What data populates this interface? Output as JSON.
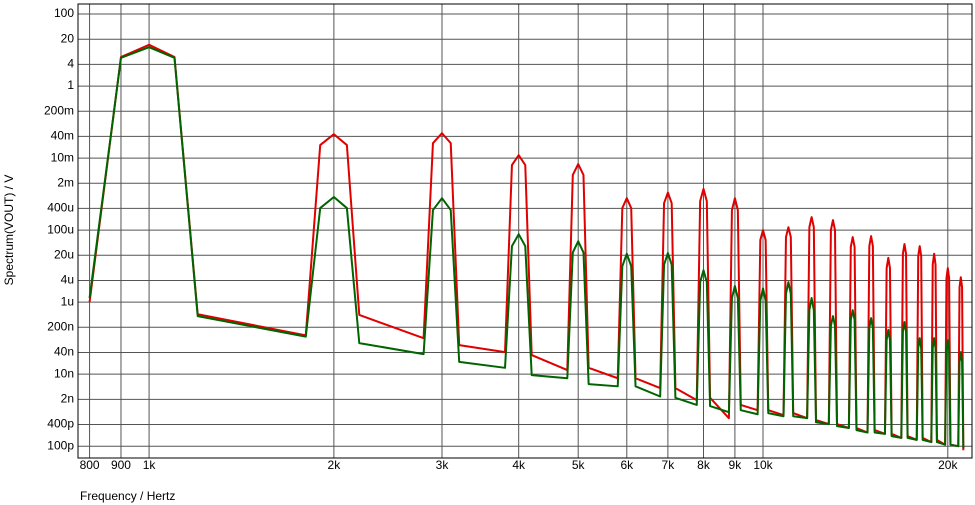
{
  "chart_data": {
    "type": "line",
    "xlabel": "Frequency / Hertz",
    "ylabel": "Spectrum(VOUT) / V",
    "xscale": "log",
    "yscale": "log",
    "grid": true,
    "xlim": [
      766,
      21900
    ],
    "ylim": [
      4.7e-11,
      190
    ],
    "xticks": [
      800,
      900,
      {
        "value": 1000,
        "label": "1k"
      },
      {
        "value": 2000,
        "label": "2k"
      },
      {
        "value": 3000,
        "label": "3k"
      },
      {
        "value": 4000,
        "label": "4k"
      },
      {
        "value": 5000,
        "label": "5k"
      },
      {
        "value": 6000,
        "label": "6k"
      },
      {
        "value": 7000,
        "label": "7k"
      },
      {
        "value": 8000,
        "label": "8k"
      },
      {
        "value": 9000,
        "label": "9k"
      },
      {
        "value": 10000,
        "label": "10k"
      },
      {
        "value": 20000,
        "label": "20k"
      }
    ],
    "yticks": [
      100,
      20,
      4,
      1,
      {
        "value": 0.2,
        "label": "200m"
      },
      {
        "value": 0.04,
        "label": "40m"
      },
      {
        "value": 0.01,
        "label": "10m"
      },
      {
        "value": 0.002,
        "label": "2m"
      },
      {
        "value": 0.0004,
        "label": "400u"
      },
      {
        "value": 0.0001,
        "label": "100u"
      },
      {
        "value": 2e-05,
        "label": "20u"
      },
      {
        "value": 4e-06,
        "label": "4u"
      },
      {
        "value": 1e-06,
        "label": "1u"
      },
      {
        "value": 2e-07,
        "label": "200n"
      },
      {
        "value": 4e-08,
        "label": "40n"
      },
      {
        "value": 1e-08,
        "label": "10n"
      },
      {
        "value": 2e-09,
        "label": "2n"
      },
      {
        "value": 4e-10,
        "label": "400p"
      },
      {
        "value": 1e-10,
        "label": "100p"
      }
    ],
    "x": [
      800,
      900,
      1000,
      1100,
      1200,
      1800,
      1900,
      2000,
      2100,
      2200,
      2800,
      2900,
      3000,
      3100,
      3200,
      3800,
      3900,
      4000,
      4100,
      4200,
      4800,
      4900,
      5000,
      5100,
      5200,
      5800,
      5900,
      6000,
      6100,
      6200,
      6800,
      6900,
      7000,
      7100,
      7200,
      7800,
      7900,
      8000,
      8100,
      8200,
      8800,
      8900,
      9000,
      9100,
      9200,
      9800,
      9900,
      10000,
      10100,
      10200,
      10800,
      10900,
      11000,
      11100,
      11200,
      11800,
      11900,
      12000,
      12100,
      12200,
      12800,
      12900,
      13000,
      13100,
      13200,
      13800,
      13900,
      14000,
      14100,
      14200,
      14800,
      14900,
      15000,
      15100,
      15200,
      15800,
      15900,
      16000,
      16100,
      16200,
      16800,
      16900,
      17000,
      17100,
      17200,
      17800,
      17900,
      18000,
      18100,
      18200,
      18800,
      18900,
      19000,
      19100,
      19200,
      19800,
      19900,
      20000,
      20100,
      20200,
      20800,
      20900,
      21000,
      21100,
      21200
    ],
    "series": [
      {
        "color": "#e00000",
        "values": [
          1e-06,
          6.4,
          14,
          6.4,
          4.6e-07,
          1.2e-07,
          0.023,
          0.046,
          0.023,
          4.4e-07,
          1e-07,
          0.026,
          0.049,
          0.026,
          6.4e-08,
          4.1e-08,
          0.0064,
          0.012,
          0.0064,
          3.4e-08,
          1.3e-08,
          0.0034,
          0.0068,
          0.0034,
          1.5e-08,
          7.7e-09,
          0.00041,
          0.00077,
          0.00041,
          7.7e-09,
          4.1e-09,
          0.00056,
          0.0011,
          0.00056,
          4.1e-09,
          1.9e-09,
          0.00064,
          0.0014,
          0.00064,
          2.2e-09,
          6e-10,
          0.00036,
          0.00077,
          0.00036,
          1.4e-09,
          1e-09,
          5.3e-05,
          0.0001,
          5.3e-05,
          1e-09,
          7.3e-10,
          6.4e-05,
          0.00012,
          6.4e-05,
          8.3e-10,
          6e-10,
          0.00012,
          0.00023,
          0.00012,
          5.3e-10,
          4.1e-10,
          0.0001,
          0.00019,
          0.0001,
          4.1e-10,
          3.2e-10,
          3.4e-05,
          6.4e-05,
          3.4e-05,
          3.2e-10,
          2.4e-10,
          3.6e-05,
          6.8e-05,
          3.6e-05,
          2.8e-10,
          2.2e-10,
          8.8e-06,
          1.7e-05,
          8.8e-06,
          2.2e-10,
          1.7e-10,
          2.2e-05,
          4.1e-05,
          2.2e-05,
          1.9e-10,
          1.5e-10,
          1.9e-05,
          3.6e-05,
          1.9e-05,
          1.7e-10,
          1.3e-10,
          1.1e-05,
          2.2e-05,
          1.1e-05,
          1.5e-10,
          1.1e-10,
          4.6e-06,
          8.8e-06,
          4.6e-06,
          1.1e-10,
          1e-10,
          2.6e-06,
          4.9e-06,
          2.6e-06,
          7.7e-11
        ]
      },
      {
        "color": "#006400",
        "values": [
          1.3e-06,
          6.1,
          12,
          6.1,
          4.1e-07,
          1.1e-07,
          0.00041,
          0.00083,
          0.00041,
          7.3e-08,
          3.6e-08,
          0.00036,
          0.00077,
          0.00036,
          2.2e-08,
          1.5e-08,
          3.6e-05,
          7.7e-05,
          3.6e-05,
          9.4e-09,
          7.7e-09,
          2.4e-05,
          4.9e-05,
          2.4e-05,
          5.3e-09,
          4.6e-09,
          1e-05,
          2.2e-05,
          1e-05,
          4.6e-09,
          2.4e-09,
          1.1e-05,
          2.3e-05,
          1.1e-05,
          2.2e-09,
          1.4e-09,
          3.6e-06,
          7.7e-06,
          3.6e-06,
          1.3e-09,
          8.8e-10,
          1.3e-06,
          2.8e-06,
          1.3e-06,
          1e-09,
          7.7e-10,
          1.1e-06,
          2.4e-06,
          1.1e-06,
          8.3e-10,
          6.8e-10,
          1.7e-06,
          3.6e-06,
          1.7e-06,
          6.8e-10,
          6e-10,
          6e-07,
          1.3e-06,
          6e-07,
          4.6e-10,
          4.1e-10,
          2.2e-07,
          4.1e-07,
          2.2e-07,
          3.6e-10,
          3.2e-10,
          3.2e-07,
          6e-07,
          3.2e-07,
          2.8e-10,
          2.4e-10,
          1.9e-07,
          3.6e-07,
          1.9e-07,
          2.4e-10,
          2.2e-10,
          8.8e-08,
          1.7e-07,
          8.8e-08,
          1.9e-10,
          1.7e-10,
          1.5e-07,
          2.8e-07,
          1.5e-07,
          1.7e-10,
          1.5e-10,
          5.3e-08,
          1e-07,
          5.3e-08,
          1.5e-10,
          1.3e-10,
          5.3e-08,
          1e-07,
          5.3e-08,
          1.3e-10,
          1.1e-10,
          4.6e-08,
          8.8e-08,
          4.6e-08,
          1.1e-10,
          1e-10,
          2.2e-08,
          4.1e-08,
          2.2e-08,
          8.8e-11
        ]
      }
    ]
  }
}
